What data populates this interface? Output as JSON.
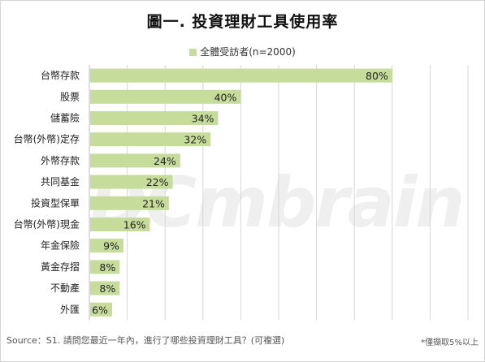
{
  "chart_data": {
    "type": "bar",
    "orientation": "horizontal",
    "title": "圖一. 投資理財工具使用率",
    "categories": [
      "台幣存款",
      "股票",
      "儲蓄險",
      "台幣(外幣)定存",
      "外幣存款",
      "共同基金",
      "投資型保單",
      "台幣(外幣)現金",
      "年金保險",
      "黃金存摺",
      "不動產",
      "外匯"
    ],
    "series": [
      {
        "name": "全體受訪者(n=2000)",
        "values": [
          80,
          40,
          34,
          32,
          24,
          22,
          21,
          16,
          9,
          8,
          8,
          6
        ],
        "labels": [
          "80%",
          "40%",
          "34%",
          "32%",
          "24%",
          "22%",
          "21%",
          "16%",
          "9%",
          "8%",
          "8%",
          "6%"
        ]
      }
    ],
    "xlim": [
      0,
      100
    ],
    "grid": true,
    "legend_position": "top",
    "bar_color": "#c6dc9b",
    "grid_color": "#d6d6d6"
  },
  "watermark": "DCmbrain",
  "footer": {
    "source": "Source：S1. 請問您最近一年內，進行了哪些投資理財工具？(可複選)",
    "note": "*僅擷取5%以上"
  }
}
